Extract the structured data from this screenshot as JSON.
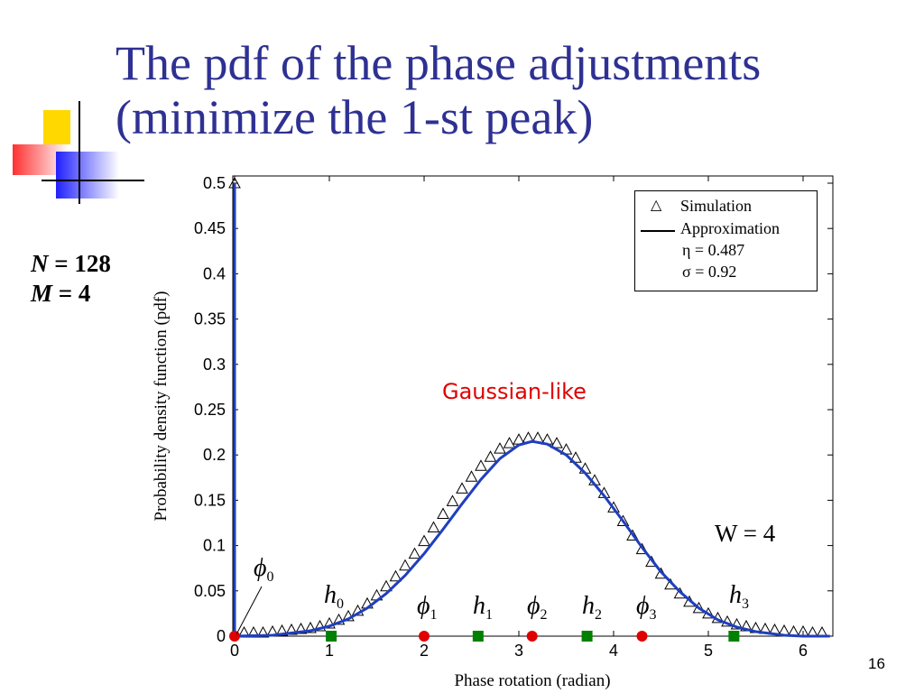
{
  "slide": {
    "title_line1": "The pdf of the phase adjustments",
    "title_line2": "(minimize the 1-st peak)",
    "page_number": "16",
    "param_n_label": "N",
    "param_n_value": "= 128",
    "param_m_label": "M",
    "param_m_value": "= 4"
  },
  "colors": {
    "title": "#2e3192",
    "approximation": "#1f3fbf",
    "gaussian_label": "#e00000",
    "phi_markers": "#e00000",
    "h_markers": "#008000"
  },
  "chart_data": {
    "type": "line",
    "xlabel": "Phase rotation (radian)",
    "ylabel": "Probability density function (pdf)",
    "xlim": [
      0,
      6.2832
    ],
    "ylim": [
      0,
      0.5
    ],
    "xticks": [
      "0",
      "1",
      "2",
      "3",
      "4",
      "5",
      "6"
    ],
    "yticks": [
      "0",
      "0.05",
      "0.1",
      "0.15",
      "0.2",
      "0.25",
      "0.3",
      "0.35",
      "0.4",
      "0.45",
      "0.5"
    ],
    "legend": {
      "position": "top-right",
      "entries": [
        "Simulation",
        "Approximation"
      ],
      "eta": "η = 0.487",
      "sigma": "σ = 0.92"
    },
    "annotation_gaussian": "Gaussian-like",
    "annotation_w": "W = 4",
    "spike": {
      "x": 0,
      "y": 0.5
    },
    "approximation": {
      "name": "Approximation",
      "x": [
        0.0,
        0.4,
        0.8,
        1.0,
        1.2,
        1.4,
        1.6,
        1.8,
        2.0,
        2.2,
        2.4,
        2.6,
        2.8,
        3.0,
        3.14,
        3.3,
        3.5,
        3.7,
        3.9,
        4.1,
        4.3,
        4.5,
        4.7,
        4.9,
        5.1,
        5.3,
        5.5,
        5.8,
        6.0,
        6.2832
      ],
      "y": [
        0.0,
        0.001,
        0.006,
        0.011,
        0.019,
        0.031,
        0.047,
        0.067,
        0.091,
        0.118,
        0.146,
        0.173,
        0.196,
        0.211,
        0.215,
        0.212,
        0.2,
        0.18,
        0.155,
        0.127,
        0.098,
        0.071,
        0.049,
        0.031,
        0.018,
        0.01,
        0.005,
        0.001,
        0.0,
        0.0
      ]
    },
    "simulation": {
      "name": "Simulation",
      "x": [
        0.1,
        0.2,
        0.3,
        0.4,
        0.5,
        0.6,
        0.7,
        0.8,
        0.9,
        1.0,
        1.1,
        1.2,
        1.3,
        1.4,
        1.5,
        1.6,
        1.7,
        1.8,
        1.9,
        2.0,
        2.1,
        2.2,
        2.3,
        2.4,
        2.5,
        2.6,
        2.7,
        2.8,
        2.9,
        3.0,
        3.1,
        3.2,
        3.3,
        3.4,
        3.5,
        3.6,
        3.7,
        3.8,
        3.9,
        4.0,
        4.1,
        4.2,
        4.3,
        4.4,
        4.5,
        4.6,
        4.7,
        4.8,
        4.9,
        5.0,
        5.1,
        5.2,
        5.3,
        5.4,
        5.5,
        5.6,
        5.7,
        5.8,
        5.9,
        6.0,
        6.1,
        6.2
      ],
      "y": [
        0.004,
        0.004,
        0.004,
        0.005,
        0.006,
        0.007,
        0.008,
        0.009,
        0.011,
        0.014,
        0.018,
        0.022,
        0.028,
        0.036,
        0.045,
        0.055,
        0.066,
        0.078,
        0.091,
        0.105,
        0.12,
        0.135,
        0.149,
        0.163,
        0.176,
        0.188,
        0.198,
        0.207,
        0.213,
        0.217,
        0.219,
        0.219,
        0.217,
        0.213,
        0.206,
        0.197,
        0.185,
        0.172,
        0.158,
        0.142,
        0.127,
        0.111,
        0.096,
        0.082,
        0.069,
        0.057,
        0.047,
        0.038,
        0.031,
        0.025,
        0.02,
        0.016,
        0.013,
        0.011,
        0.009,
        0.008,
        0.007,
        0.006,
        0.005,
        0.005,
        0.004,
        0.004
      ]
    },
    "phi_markers": [
      {
        "label": "ϕ",
        "sub": "0",
        "x": 0.0
      },
      {
        "label": "ϕ",
        "sub": "1",
        "x": 2.0
      },
      {
        "label": "ϕ",
        "sub": "2",
        "x": 3.14
      },
      {
        "label": "ϕ",
        "sub": "3",
        "x": 4.3
      }
    ],
    "h_markers": [
      {
        "label": "h",
        "sub": "0",
        "x": 1.02
      },
      {
        "label": "h",
        "sub": "1",
        "x": 2.57
      },
      {
        "label": "h",
        "sub": "2",
        "x": 3.72
      },
      {
        "label": "h",
        "sub": "3",
        "x": 5.27
      }
    ]
  }
}
